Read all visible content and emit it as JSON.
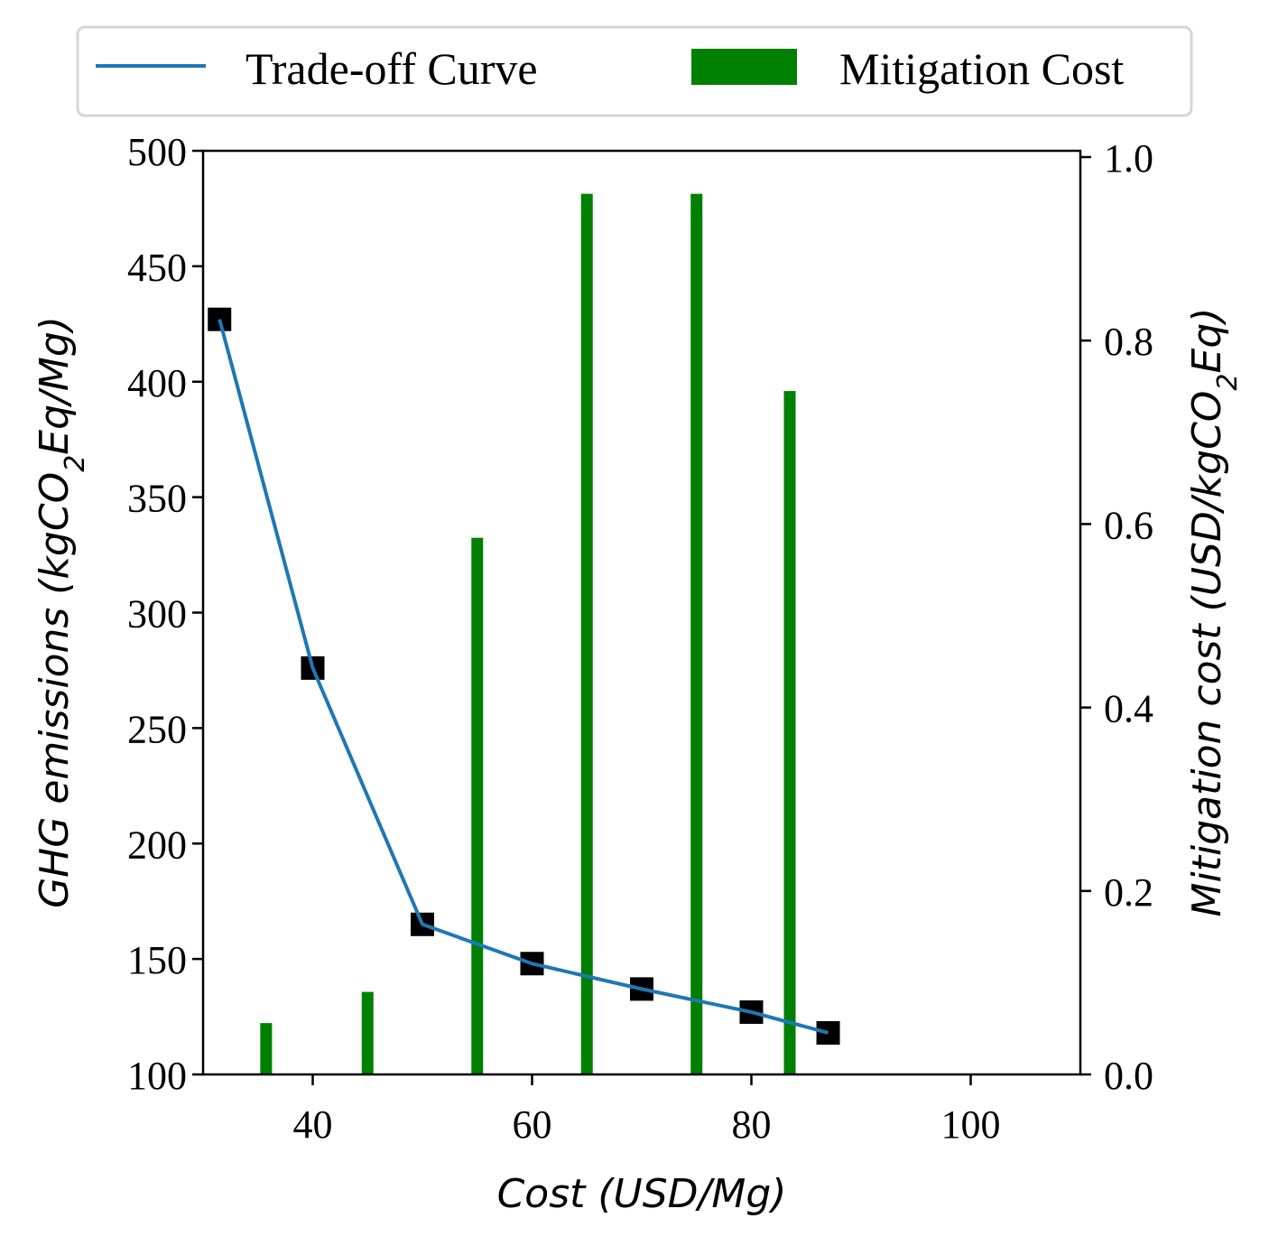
{
  "chart_data": {
    "type": "bar+line",
    "x_axis": {
      "label_main": "Cost (USD/Mg)",
      "lim": [
        30,
        110
      ],
      "ticks": [
        40,
        60,
        80,
        100
      ]
    },
    "y_axis_left": {
      "label_prefix": "GHG emissions (kgCO",
      "label_sub": "2",
      "label_suffix": "Eq/Mg)",
      "lim": [
        100,
        500
      ],
      "ticks": [
        100,
        150,
        200,
        250,
        300,
        350,
        400,
        450,
        500
      ]
    },
    "y_axis_right": {
      "label_prefix": "Mitigation cost (USD/kgCO",
      "label_sub": "2",
      "label_suffix": "Eq)",
      "lim": [
        0.0,
        1.0
      ],
      "ticks": [
        0.0,
        0.2,
        0.4,
        0.6,
        0.8,
        1.0
      ],
      "tick_labels": [
        "0.0",
        "0.2",
        "0.4",
        "0.6",
        "0.8",
        "1.0"
      ]
    },
    "trade_off_curve": {
      "name": "Trade-off Curve",
      "color": "#1f77b4",
      "points": [
        {
          "x": 31.5,
          "y": 427
        },
        {
          "x": 40,
          "y": 276
        },
        {
          "x": 50,
          "y": 165
        },
        {
          "x": 60,
          "y": 148
        },
        {
          "x": 70,
          "y": 137
        },
        {
          "x": 80,
          "y": 127
        },
        {
          "x": 87,
          "y": 118
        }
      ],
      "marker": "square",
      "marker_color": "#000000"
    },
    "mitigation_cost": {
      "name": "Mitigation Cost",
      "color": "#008000",
      "bars": [
        {
          "x": 35.75,
          "value": 0.056
        },
        {
          "x": 45,
          "value": 0.09
        },
        {
          "x": 55,
          "value": 0.585
        },
        {
          "x": 65,
          "value": 0.96
        },
        {
          "x": 75,
          "value": 0.96
        },
        {
          "x": 83.5,
          "value": 0.745
        }
      ]
    },
    "legend": {
      "placement": "top",
      "entries": [
        "Trade-off Curve",
        "Mitigation Cost"
      ]
    },
    "grid": false
  }
}
